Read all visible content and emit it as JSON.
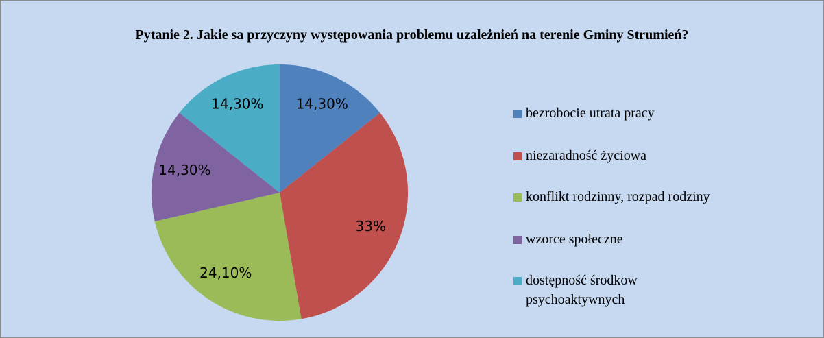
{
  "chart_data": {
    "type": "pie",
    "title": "Pytanie 2. Jakie sa przyczyny występowania problemu uzależnień na terenie Gminy Strumień?",
    "categories": [
      "bezrobocie utrata pracy",
      "niezaradność życiowa",
      "konflikt rodzinny, rozpad rodziny",
      "wzorce społeczne",
      "dostępność środkow psychoaktywnych"
    ],
    "values": [
      14.3,
      33,
      24.1,
      14.3,
      14.3
    ],
    "value_labels": [
      "14,30%",
      "33%",
      "24,10%",
      "14,30%",
      "14,30%"
    ],
    "colors": [
      "#4f81bd",
      "#c0504d",
      "#9bbb59",
      "#8064a2",
      "#4bacc6"
    ],
    "legend": "right"
  }
}
